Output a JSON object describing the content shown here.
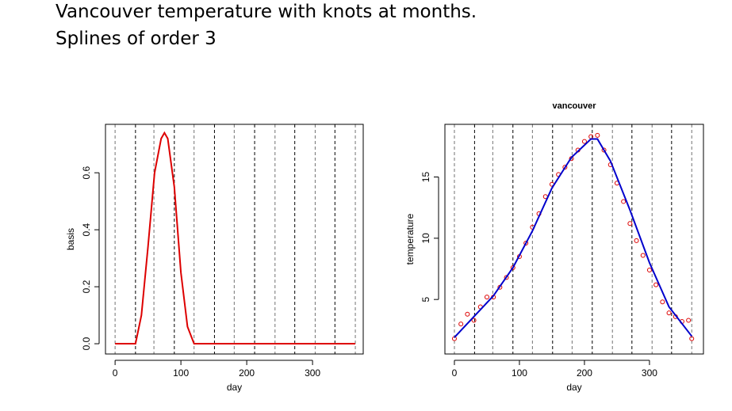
{
  "header": {
    "title": "Vancouver temperature with knots at months.",
    "subtitle": "Splines of order 3"
  },
  "chart_data": [
    {
      "type": "line",
      "xlabel": "day",
      "ylabel": "basis",
      "xlim": [
        -14.6,
        377
      ],
      "ylim": [
        -0.036,
        0.77
      ],
      "xticks": [
        0,
        100,
        200,
        300
      ],
      "yticks": [
        {
          "value": 0,
          "label": "0.0"
        },
        0.2,
        0.4,
        0.6
      ],
      "knots": [
        0,
        31,
        59,
        90,
        120,
        151,
        181,
        212,
        243,
        273,
        304,
        334,
        365
      ],
      "knot_color": "#000000",
      "series": [
        {
          "style": "line",
          "color": "#dd0000",
          "x": [
            0,
            31,
            40,
            50,
            60,
            70,
            75,
            80,
            90,
            100,
            110,
            120,
            365
          ],
          "values": [
            0,
            0,
            0.1,
            0.34,
            0.6,
            0.72,
            0.74,
            0.72,
            0.55,
            0.25,
            0.06,
            0,
            0
          ]
        }
      ]
    },
    {
      "type": "scatter",
      "title": "vancouver",
      "xlabel": "day",
      "ylabel": "temperature",
      "xlim": [
        -14.6,
        383
      ],
      "ylim": [
        0.55,
        19.3
      ],
      "xticks": [
        0,
        100,
        200,
        300
      ],
      "yticks": [
        5,
        10,
        15
      ],
      "knots": [
        0,
        31,
        59,
        90,
        120,
        151,
        181,
        212,
        243,
        273,
        304,
        334,
        365
      ],
      "knot_color": "#000000",
      "series": [
        {
          "style": "points",
          "color": "#dd0000",
          "x": [
            0,
            10,
            20,
            30,
            40,
            50,
            60,
            70,
            80,
            90,
            100,
            110,
            120,
            130,
            140,
            150,
            160,
            170,
            180,
            190,
            200,
            210,
            220,
            230,
            240,
            250,
            260,
            270,
            280,
            290,
            300,
            310,
            320,
            330,
            340,
            350,
            360,
            365
          ],
          "values": [
            1.8,
            3,
            3.8,
            3.3,
            4.4,
            5.2,
            5.2,
            6,
            6.8,
            7.6,
            8.5,
            9.6,
            10.9,
            12,
            13.4,
            14.4,
            15.2,
            15.8,
            16.5,
            17.2,
            17.9,
            18.3,
            18.4,
            17.2,
            16,
            14.5,
            13,
            11.2,
            9.8,
            8.6,
            7.4,
            6.2,
            4.8,
            3.9,
            3.6,
            3.2,
            3.3,
            1.8
          ]
        },
        {
          "style": "line",
          "color": "#0000cc",
          "x": [
            0,
            30,
            60,
            90,
            120,
            150,
            180,
            210,
            220,
            240,
            270,
            300,
            330,
            365
          ],
          "values": [
            1.9,
            3.6,
            5.3,
            7.6,
            10.6,
            14.1,
            16.6,
            18.1,
            18.1,
            16.3,
            12.3,
            8,
            4.4,
            2
          ]
        }
      ]
    }
  ]
}
